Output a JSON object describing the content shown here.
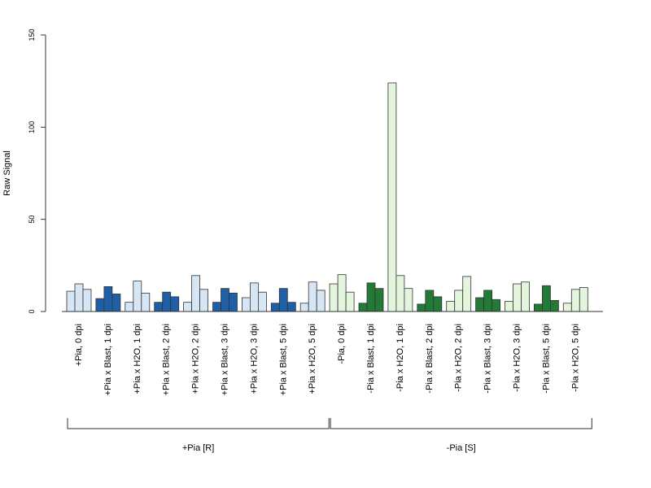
{
  "chart_data": {
    "type": "bar",
    "ylabel": "Raw Signal",
    "ylim": [
      0,
      150
    ],
    "yticks": [
      0,
      50,
      100,
      150
    ],
    "grid": false,
    "colors": {
      "plus_light": "#d6e6f5",
      "plus_dark": "#1f5fa6",
      "minus_light": "#e3f5dc",
      "minus_dark": "#237a36",
      "stroke": "#333333"
    },
    "groups": [
      {
        "label": "+Pia, 0 dpi",
        "values": [
          11,
          15,
          12
        ],
        "color": "plus_light"
      },
      {
        "label": "+Pia x Blast, 1 dpi",
        "values": [
          7,
          13.5,
          9.5
        ],
        "color": "plus_dark"
      },
      {
        "label": "+Pia x H2O, 1 dpi",
        "values": [
          5,
          16.5,
          10
        ],
        "color": "plus_light"
      },
      {
        "label": "+Pia x Blast, 2 dpi",
        "values": [
          5,
          10.5,
          8
        ],
        "color": "plus_dark"
      },
      {
        "label": "+Pia x H2O, 2 dpi",
        "values": [
          5,
          19.5,
          12
        ],
        "color": "plus_light"
      },
      {
        "label": "+Pia x Blast, 3 dpi",
        "values": [
          5,
          12.5,
          10
        ],
        "color": "plus_dark"
      },
      {
        "label": "+Pia x H2O, 3 dpi",
        "values": [
          7.5,
          15.5,
          10.5
        ],
        "color": "plus_light"
      },
      {
        "label": "+Pia x Blast, 5 dpi",
        "values": [
          4.5,
          12.5,
          5
        ],
        "color": "plus_dark"
      },
      {
        "label": "+Pia x H2O, 5 dpi",
        "values": [
          4.5,
          16,
          11.5
        ],
        "color": "plus_light"
      },
      {
        "label": "-Pia, 0 dpi",
        "values": [
          15,
          20,
          10.5
        ],
        "color": "minus_light"
      },
      {
        "label": "-Pia x Blast, 1 dpi",
        "values": [
          4.5,
          15.5,
          12.5
        ],
        "color": "minus_dark"
      },
      {
        "label": "-Pia x H2O, 1 dpi",
        "values": [
          124,
          19.5,
          12.5
        ],
        "color": "minus_light"
      },
      {
        "label": "-Pia x Blast, 2 dpi",
        "values": [
          4,
          11.5,
          8
        ],
        "color": "minus_dark"
      },
      {
        "label": "-Pia x H2O, 2 dpi",
        "values": [
          5.5,
          11.5,
          19
        ],
        "color": "minus_light"
      },
      {
        "label": "-Pia x Blast, 3 dpi",
        "values": [
          7.5,
          11.5,
          6.5
        ],
        "color": "minus_dark"
      },
      {
        "label": "-Pia x H2O, 3 dpi",
        "values": [
          5.5,
          15,
          16
        ],
        "color": "minus_light"
      },
      {
        "label": "-Pia x Blast, 5 dpi",
        "values": [
          4,
          14,
          6
        ],
        "color": "minus_dark"
      },
      {
        "label": "-Pia x H2O, 5 dpi",
        "values": [
          4.5,
          12,
          13
        ],
        "color": "minus_light"
      }
    ],
    "supergroups": [
      {
        "label": "+Pia [R]",
        "from": 0,
        "to": 8
      },
      {
        "label": "-Pia [S]",
        "from": 9,
        "to": 17
      }
    ]
  }
}
